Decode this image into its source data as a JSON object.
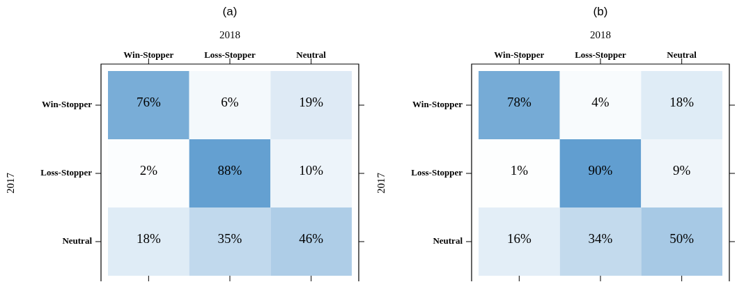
{
  "chart_data": [
    {
      "type": "heatmap",
      "title": "(a)",
      "xlabel": "2018",
      "ylabel": "2017",
      "categories": [
        "Win-Stopper",
        "Loss-Stopper",
        "Neutral"
      ],
      "y_categories": [
        "Win-Stopper",
        "Loss-Stopper",
        "Neutral"
      ],
      "cells": [
        [
          76,
          6,
          19
        ],
        [
          2,
          88,
          10
        ],
        [
          18,
          35,
          46
        ]
      ],
      "cell_labels": [
        [
          "76%",
          "6%",
          "19%"
        ],
        [
          "2%",
          "88%",
          "10%"
        ],
        [
          "18%",
          "35%",
          "46%"
        ]
      ]
    },
    {
      "type": "heatmap",
      "title": "(b)",
      "xlabel": "2018",
      "ylabel": "2017",
      "categories": [
        "Win-Stopper",
        "Loss-Stopper",
        "Neutral"
      ],
      "y_categories": [
        "Win-Stopper",
        "Loss-Stopper",
        "Neutral"
      ],
      "cells": [
        [
          78,
          4,
          18
        ],
        [
          1,
          90,
          9
        ],
        [
          16,
          34,
          50
        ]
      ],
      "cell_labels": [
        [
          "78%",
          "4%",
          "18%"
        ],
        [
          "1%",
          "90%",
          "9%"
        ],
        [
          "16%",
          "34%",
          "50%"
        ]
      ]
    }
  ]
}
